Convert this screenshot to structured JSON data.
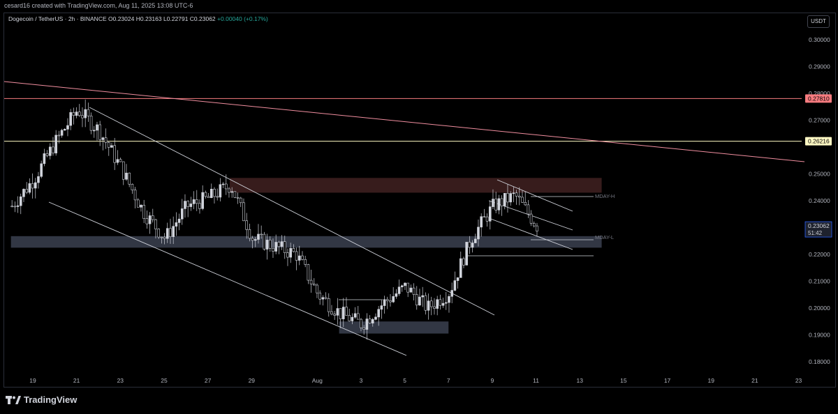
{
  "header": {
    "attribution": "cesard16 created with TradingView.com, Aug 11, 2025 13:08 UTC-6",
    "symbol_name": "Dogecoin / TetherUS · 2h · BINANCE",
    "ohlc": {
      "o": "O0.23024",
      "h": "H0.23163",
      "l": "L0.22791",
      "c": "C0.23062"
    },
    "change": "+0.00040 (+0.17%)",
    "currency_button": "USDT"
  },
  "brand": {
    "name": "TradingView",
    "logo_icon": "tradingview-logo-icon"
  },
  "colors": {
    "up": "#d1d4dc",
    "down": "#d1d4dc",
    "resistance_line": "#f28fa0",
    "supply_zone": "#3a1e1e",
    "demand_zone": "#3b4150",
    "channel": "#d1d4dc",
    "last_price_bg": "#2962ff",
    "red_label_bg": "#f77c80",
    "yellow_label_bg": "#fff9c4"
  },
  "chart_data": {
    "type": "candlestick",
    "symbol": "Dogecoin / TetherUS",
    "timeframe": "2h",
    "exchange": "BINANCE",
    "y_axis": {
      "ticks": [
        "0.30000",
        "0.29000",
        "0.28000",
        "0.27000",
        "0.25000",
        "0.24000",
        "0.22000",
        "0.21000",
        "0.20000",
        "0.19000",
        "0.18000"
      ],
      "range": [
        0.175,
        0.305
      ]
    },
    "x_axis": {
      "ticks": [
        "19",
        "21",
        "23",
        "25",
        "27",
        "29",
        "Aug",
        "3",
        "5",
        "7",
        "9",
        "11",
        "13",
        "15",
        "17",
        "19",
        "21",
        "23"
      ]
    },
    "horizontal_levels": [
      {
        "price": 0.2781,
        "label": "0.27810",
        "color": "#f77c80"
      },
      {
        "price": 0.26216,
        "label": "0.26216",
        "color": "#fff9c4"
      }
    ],
    "last_price": {
      "label": "0.23062",
      "countdown": "51:42"
    },
    "zones": [
      {
        "type": "supply",
        "from": "Jul 28",
        "to": "Aug 14",
        "low": 0.243,
        "high": 0.2485
      },
      {
        "type": "demand",
        "from": "Jul 18",
        "to": "Aug 14",
        "low": 0.2225,
        "high": 0.2268
      },
      {
        "type": "demand",
        "from": "Aug 2",
        "to": "Aug 7",
        "low": 0.1905,
        "high": 0.195
      }
    ],
    "annotations": [
      {
        "text": "MDAY-H",
        "price": 0.2418
      },
      {
        "text": "MDAY-L",
        "price": 0.2265
      }
    ],
    "ohlc_close_sample": [
      {
        "x": "Jul 18",
        "close": 0.238
      },
      {
        "x": "Jul 19",
        "close": 0.248
      },
      {
        "x": "Jul 20",
        "close": 0.262
      },
      {
        "x": "Jul 21",
        "close": 0.274
      },
      {
        "x": "Jul 22",
        "close": 0.266
      },
      {
        "x": "Jul 23",
        "close": 0.252
      },
      {
        "x": "Jul 24",
        "close": 0.236
      },
      {
        "x": "Jul 25",
        "close": 0.226
      },
      {
        "x": "Jul 26",
        "close": 0.238
      },
      {
        "x": "Jul 27",
        "close": 0.241
      },
      {
        "x": "Jul 28",
        "close": 0.246
      },
      {
        "x": "Jul 29",
        "close": 0.226
      },
      {
        "x": "Jul 30",
        "close": 0.223
      },
      {
        "x": "Jul 31",
        "close": 0.22
      },
      {
        "x": "Aug 1",
        "close": 0.205
      },
      {
        "x": "Aug 2",
        "close": 0.198
      },
      {
        "x": "Aug 3",
        "close": 0.194
      },
      {
        "x": "Aug 4",
        "close": 0.202
      },
      {
        "x": "Aug 5",
        "close": 0.208
      },
      {
        "x": "Aug 6",
        "close": 0.2
      },
      {
        "x": "Aug 7",
        "close": 0.206
      },
      {
        "x": "Aug 8",
        "close": 0.226
      },
      {
        "x": "Aug 9",
        "close": 0.238
      },
      {
        "x": "Aug 10",
        "close": 0.242
      },
      {
        "x": "Aug 11",
        "close": 0.2306
      }
    ]
  }
}
